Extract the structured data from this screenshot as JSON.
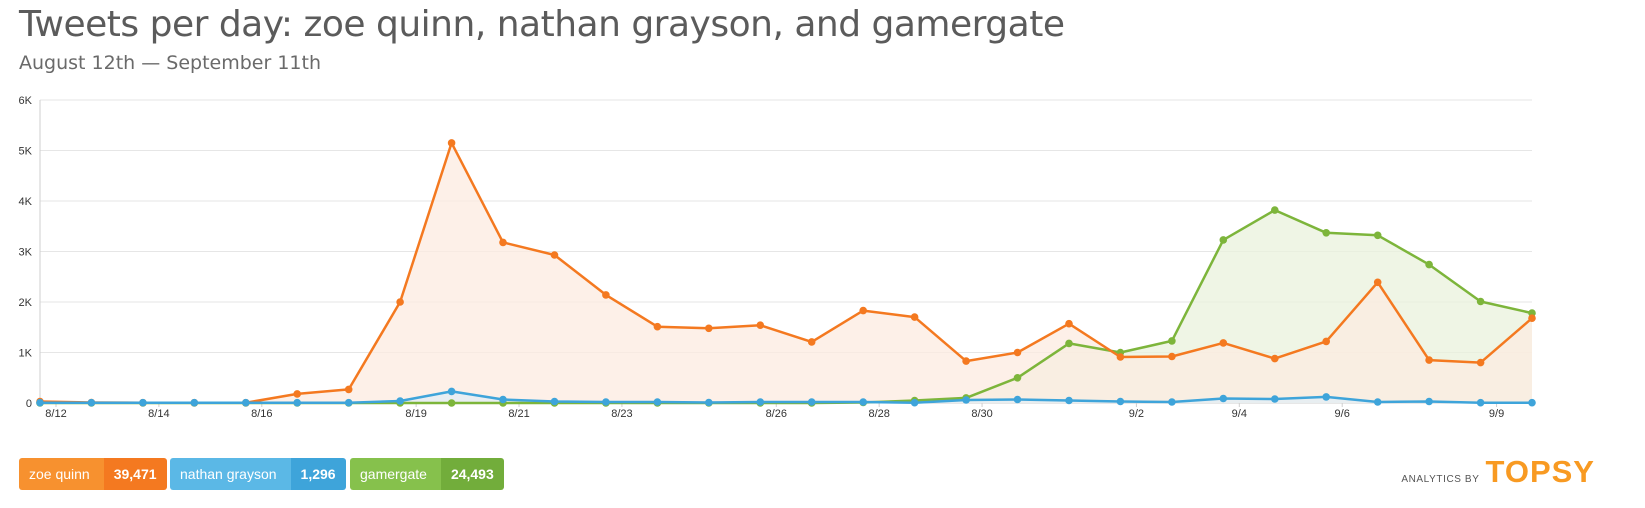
{
  "chart_data": {
    "type": "area",
    "title": "Tweets per day: zoe quinn, nathan grayson, and gamergate",
    "subtitle": "August 12th — September 11th",
    "y_ticks": [
      "0",
      "1K",
      "2K",
      "3K",
      "4K",
      "5K",
      "6K"
    ],
    "ylim": [
      0,
      6000
    ],
    "x_tick_labels": [
      "8/12",
      "8/14",
      "8/16",
      "8/19",
      "8/21",
      "8/23",
      "8/26",
      "8/28",
      "8/30",
      "9/2",
      "9/4",
      "9/6",
      "9/9"
    ],
    "grid": true,
    "legend_position": "bottom-left",
    "series": [
      {
        "name": "zoe quinn",
        "total": "39,471",
        "color": "#f47920",
        "fill": "#fcebe0",
        "values": [
          30,
          10,
          5,
          5,
          5,
          180,
          270,
          2000,
          5150,
          3180,
          2930,
          2140,
          1510,
          1480,
          1540,
          1210,
          1830,
          1700,
          830,
          1000,
          1570,
          910,
          920,
          1190,
          880,
          1220,
          2390,
          850,
          800,
          1680
        ]
      },
      {
        "name": "nathan grayson",
        "total": "1,296",
        "color": "#3ea4da",
        "fill": "#e2eef5",
        "values": [
          5,
          5,
          5,
          5,
          5,
          5,
          5,
          40,
          230,
          70,
          30,
          20,
          20,
          10,
          20,
          20,
          20,
          5,
          60,
          70,
          50,
          30,
          20,
          90,
          80,
          120,
          20,
          30,
          5,
          5
        ]
      },
      {
        "name": "gamergate",
        "total": "24,493",
        "color": "#7db53b",
        "fill": "#eaf1dc",
        "values": [
          0,
          0,
          0,
          0,
          0,
          0,
          0,
          0,
          0,
          0,
          0,
          0,
          0,
          0,
          0,
          0,
          10,
          50,
          100,
          500,
          1180,
          1000,
          1230,
          3230,
          3820,
          3370,
          3320,
          2740,
          2010,
          1780
        ]
      }
    ]
  },
  "legend": [
    {
      "label": "zoe quinn",
      "value": "39,471",
      "name_bg": "#f7912f",
      "value_bg": "#f47920"
    },
    {
      "label": "nathan grayson",
      "value": "1,296",
      "name_bg": "#5bb8e6",
      "value_bg": "#3ea4da"
    },
    {
      "label": "gamergate",
      "value": "24,493",
      "name_bg": "#86c14c",
      "value_bg": "#72ad3b"
    }
  ],
  "branding": {
    "by": "ANALYTICS BY",
    "name": "TOPSY"
  }
}
